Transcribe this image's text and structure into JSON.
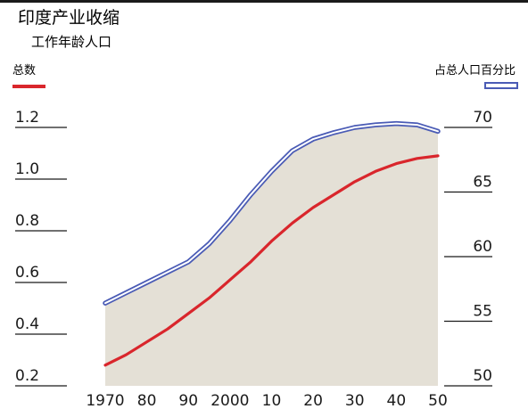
{
  "chart_data": {
    "type": "area",
    "title": "印度产业收缩",
    "subtitle": "工作年龄人口",
    "legend": [
      {
        "key": "total",
        "label": "总数",
        "color": "#d9262c",
        "placement": "top-left"
      },
      {
        "key": "percent",
        "label": "占总人口百分比",
        "color": "#4a5bb5",
        "placement": "top-right"
      }
    ],
    "x": [
      1970,
      1980,
      1990,
      2000,
      2010,
      2020,
      2030,
      2040,
      2050
    ],
    "x_tick_labels": [
      "1970",
      "80",
      "90",
      "2000",
      "10",
      "20",
      "30",
      "40",
      "50"
    ],
    "xlim": [
      1970,
      2050
    ],
    "y_left": {
      "ticks": [
        0.2,
        0.4,
        0.6,
        0.8,
        1.0,
        1.2
      ],
      "tick_labels": [
        "0.2",
        "0.4",
        "0.6",
        "0.8",
        "1.0",
        "1.2"
      ],
      "lim": [
        0.2,
        1.2
      ]
    },
    "y_right": {
      "ticks": [
        50,
        55,
        60,
        65,
        70
      ],
      "tick_labels": [
        "50",
        "55",
        "60",
        "65",
        "70"
      ],
      "lim": [
        50,
        70
      ]
    },
    "series": [
      {
        "name": "总数",
        "axis": "left",
        "color": "#d9262c",
        "style": "line",
        "x": [
          1970,
          1975,
          1980,
          1985,
          1990,
          1995,
          2000,
          2005,
          2010,
          2015,
          2020,
          2025,
          2030,
          2035,
          2040,
          2045,
          2050
        ],
        "values": [
          0.28,
          0.32,
          0.37,
          0.42,
          0.48,
          0.54,
          0.61,
          0.68,
          0.76,
          0.83,
          0.89,
          0.94,
          0.99,
          1.03,
          1.06,
          1.08,
          1.09
        ]
      },
      {
        "name": "占总人口百分比",
        "axis": "right",
        "color": "#4a5bb5",
        "style": "double-line",
        "fill": "#e4e0d6",
        "x": [
          1970,
          1975,
          1980,
          1985,
          1990,
          1995,
          2000,
          2005,
          2010,
          2015,
          2020,
          2025,
          2030,
          2035,
          2040,
          2045,
          2050
        ],
        "values": [
          56.4,
          57.2,
          58.0,
          58.8,
          59.6,
          61.0,
          62.8,
          64.8,
          66.6,
          68.2,
          69.1,
          69.6,
          70.0,
          70.2,
          70.3,
          70.2,
          69.7
        ]
      }
    ]
  }
}
